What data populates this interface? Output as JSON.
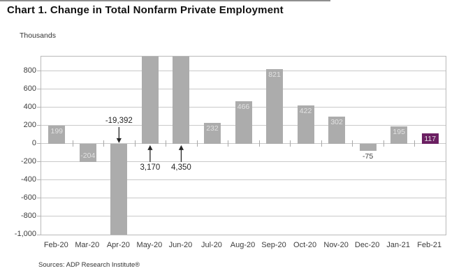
{
  "chart_data": {
    "type": "bar",
    "title": "Chart 1. Change in Total Nonfarm Private Employment",
    "unit_label": "Thousands",
    "source": "Sources: ADP Research Institute®",
    "categories": [
      "Feb-20",
      "Mar-20",
      "Apr-20",
      "May-20",
      "Jun-20",
      "Jul-20",
      "Aug-20",
      "Sep-20",
      "Oct-20",
      "Nov-20",
      "Dec-20",
      "Jan-21",
      "Feb-21"
    ],
    "values": [
      199,
      -204,
      -19392,
      3170,
      4350,
      232,
      466,
      821,
      422,
      302,
      -75,
      195,
      117
    ],
    "bar_labels": [
      "199",
      "-204",
      "",
      "",
      "",
      "232",
      "466",
      "821",
      "422",
      "302",
      "-75",
      "195",
      "117"
    ],
    "label_placement": [
      "inside",
      "inside",
      "none",
      "none",
      "none",
      "inside",
      "inside",
      "inside",
      "inside",
      "inside",
      "below",
      "inside",
      "inside"
    ],
    "highlight_category": "Feb-21",
    "annotations": [
      {
        "text": "-19,392",
        "category": "Apr-20",
        "arrow": "down"
      },
      {
        "text": "3,170",
        "category": "May-20",
        "arrow": "up"
      },
      {
        "text": "4,350",
        "category": "Jun-20",
        "arrow": "up"
      }
    ],
    "y_axis": {
      "tick_values": [
        800,
        600,
        400,
        200,
        0,
        -200,
        -400,
        -600,
        -800,
        -1000
      ],
      "tick_labels": [
        "800",
        "600",
        "400",
        "200",
        "0",
        "-200",
        "-400",
        "-600",
        "-800",
        "-1,000"
      ],
      "ylim": [
        -1000,
        960
      ],
      "gridlines": true
    },
    "legend": null,
    "colors": {
      "bar": "#acacac",
      "highlight_bar": "#6b1f62",
      "bar_label": "#e2e2e2",
      "grid": "#c9c9c9",
      "axis_text": "#3c3c3c",
      "annotation": "#262626"
    }
  }
}
